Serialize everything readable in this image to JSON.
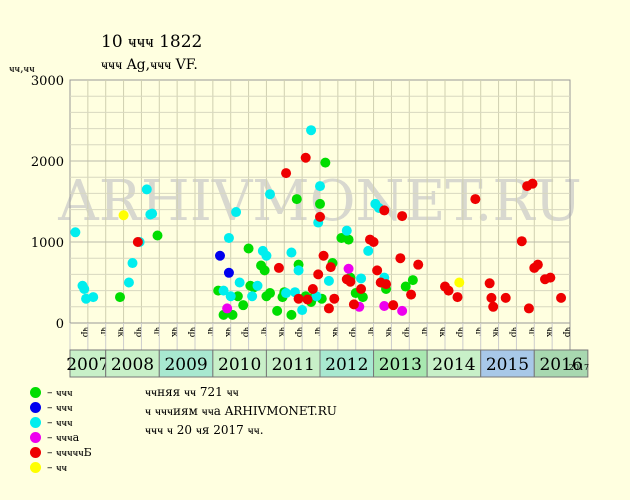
{
  "title": "10 ҹҹҹ 1822",
  "subtitle": "ҹҹҹ Ag,ҹҹҹ VF.",
  "ylabel": "ҹҹ,ҹҹ",
  "watermark": "ARHIVMONET.RU",
  "legend": [
    {
      "label": "– ҹҹҹ",
      "color": "#00dd00"
    },
    {
      "label": "– ҹҹҹ",
      "color": "#0000ee"
    },
    {
      "label": "– ҹҹҹ",
      "color": "#00eeee"
    },
    {
      "label": "– ҹҹҹа",
      "color": "#ee00ee"
    },
    {
      "label": "– ҹҹҹҹҹБ",
      "color": "#ee0000"
    },
    {
      "label": "– ҹҹ",
      "color": "#ffff00"
    }
  ],
  "notes": [
    "ҹҹняя ҹҹ 721 ҹҹ",
    "ҹ ҹҹҹиям ҹҹа ARHIVMONET.RU",
    "ҹҹҹ ҹ 20 ҹя 2017 ҹҹ."
  ],
  "chart_data": {
    "type": "scatter",
    "ylim": [
      0,
      3000
    ],
    "yticks": [
      0,
      1000,
      2000,
      3000
    ],
    "grid": true,
    "quarter_labels": [
      "ҹр",
      "ҹг",
      "ҹк",
      "ҹр",
      "ҹг",
      "ҹк",
      "ҹр",
      "ҹг",
      "ҹк",
      "ҹр",
      "ҹг",
      "ҹк",
      "ҹр",
      "ҹг",
      "ҹк",
      "ҹр",
      "ҹг",
      "ҹк",
      "ҹр",
      "ҹг",
      "ҹк",
      "ҹр",
      "ҹг",
      "ҹк",
      "ҹр",
      "ҹг",
      "ҹк",
      "ҹр",
      "ҹг",
      "ҹк",
      "ҹр",
      "ҹг",
      "ҹк",
      "ҹр",
      "ҹг",
      "ҹк",
      "ҹр",
      "ҹг",
      "ҹк",
      "ҹр",
      "ҹг",
      "ҹк",
      "ҹр",
      "ҹг",
      "ҹк",
      "ҹр",
      "ҹг",
      "ҹк",
      "ҹр",
      "ҹг",
      "ҹк",
      "ҹр",
      "ҹг",
      "ҹк",
      "ҹр",
      "ҹг",
      "ҹк",
      "ҹр",
      "ҹг",
      "ҹк",
      "ҹр",
      "ҹг",
      "ҹк",
      "ҹр",
      "ҹг",
      "ҹк",
      "ҹр",
      "ҹг",
      "ҹк",
      "ҹр",
      "ҹг",
      "ҹк",
      "ҹр",
      "ҹг",
      "ҹк",
      "ҹр",
      "ҹг",
      "ҹк",
      "ҹр",
      "ҹг",
      "ҹк",
      "ҹр",
      "ҹг",
      "ҹк",
      "ҹр",
      "ҹг",
      "ҹк",
      "ҹр",
      "ҹг",
      "ҹк",
      "ҹр",
      "ҹг",
      "ҹк",
      "ҹр",
      "ҹг",
      "ҹк",
      "ҹр",
      "ҹг",
      "ҹк",
      "ҹр",
      "ҹг",
      "ҹк",
      "ҹр",
      "ҹг",
      "ҹк",
      "ҹр",
      "ҹг",
      "ҹк",
      "ҹр",
      "ҹг",
      "ҹк",
      "ҹр",
      "ҹг",
      "ҹк",
      "ҹр",
      "ҹг",
      "ҹк",
      "ҹр",
      "ҹг",
      "ҹк",
      "ҹр",
      "ҹг",
      "ҹк",
      "ҹр",
      "ҹг",
      "ҹк",
      "ҹр",
      "ҹг",
      "ҹк",
      "ҹр",
      "ҹг",
      "ҹк",
      "ҹр",
      "ҹг",
      "ҹк",
      "ҹр",
      "ҹг",
      "ҹк",
      "ҹр",
      "ҹг",
      "ҹк",
      "ҹр",
      "ҹг",
      "ҹк",
      "ҹр",
      "ҹг",
      "ҹк",
      "ҹр",
      "ҹг",
      "ҹк",
      "ҹр",
      "ҹг",
      "ҹк",
      "ҹр",
      "ҹг",
      "ҹк",
      "ҹр",
      "ҹг",
      "ҹк",
      "ҹр",
      "ҹг",
      "ҹк",
      "ҹр",
      "ҹг",
      "ҹк",
      "ҹр",
      "ҹг",
      "ҹк",
      "ҹр",
      "ҹг",
      "ҹк",
      "ҹр",
      "ҹг",
      "ҹк",
      "ҹр",
      "ҹг",
      "ҹк",
      "ҹр",
      "ҹг",
      "ҹк",
      "ҹр",
      "ҹг",
      "ҹк",
      "ҹр",
      "ҹг",
      "ҹк",
      "ҹр",
      "ҹг",
      "ҹк",
      "ҹр",
      "ҹг",
      "ҹк",
      "ҹр",
      "ҹг",
      "ҹк",
      "ҹр",
      "ҹг",
      "ҹк",
      "ҹр",
      "ҹг",
      "ҹк",
      "ҹр",
      "ҹг",
      "ҹк"
    ],
    "years": [
      {
        "label": "2007",
        "color": "#c8f0c8"
      },
      {
        "label": "2008",
        "color": "#c8f0c8"
      },
      {
        "label": "2009",
        "color": "#a8e8d0"
      },
      {
        "label": "2010",
        "color": "#c8f0c8"
      },
      {
        "label": "2011",
        "color": "#c8f0c8"
      },
      {
        "label": "2012",
        "color": "#a8e8d0"
      },
      {
        "label": "2013",
        "color": "#a8e8b0"
      },
      {
        "label": "2014",
        "color": "#c8f0c8"
      },
      {
        "label": "2015",
        "color": "#a8c8e8"
      },
      {
        "label": "2016",
        "color": "#a8d8b0"
      },
      {
        "label": "2017",
        "color": "#c8f0c8"
      }
    ],
    "series": [
      {
        "color": "#00dd00",
        "points": [
          [
            2.8,
            320
          ],
          [
            4.9,
            1080
          ],
          [
            8.3,
            400
          ],
          [
            8.6,
            100
          ],
          [
            9.1,
            100
          ],
          [
            9.4,
            330
          ],
          [
            9.7,
            220
          ],
          [
            10.0,
            920
          ],
          [
            10.1,
            460
          ],
          [
            10.3,
            440
          ],
          [
            10.7,
            710
          ],
          [
            10.9,
            650
          ],
          [
            11.0,
            330
          ],
          [
            11.2,
            370
          ],
          [
            11.6,
            150
          ],
          [
            11.9,
            320
          ],
          [
            12.0,
            380
          ],
          [
            12.4,
            100
          ],
          [
            12.7,
            1530
          ],
          [
            12.8,
            720
          ],
          [
            13.2,
            330
          ],
          [
            13.5,
            260
          ],
          [
            13.6,
            310
          ],
          [
            14.0,
            1470
          ],
          [
            14.1,
            300
          ],
          [
            14.3,
            1980
          ],
          [
            14.7,
            740
          ],
          [
            15.2,
            1050
          ],
          [
            15.6,
            1030
          ],
          [
            15.7,
            560
          ],
          [
            16.0,
            370
          ],
          [
            16.4,
            320
          ],
          [
            17.7,
            420
          ],
          [
            18.8,
            450
          ],
          [
            19.2,
            530
          ]
        ]
      },
      {
        "color": "#0000ee",
        "points": [
          [
            8.4,
            830
          ],
          [
            8.9,
            620
          ]
        ]
      },
      {
        "color": "#00eeee",
        "points": [
          [
            0.3,
            1120
          ],
          [
            0.7,
            460
          ],
          [
            0.8,
            420
          ],
          [
            0.9,
            300
          ],
          [
            1.3,
            320
          ],
          [
            3.3,
            500
          ],
          [
            3.5,
            740
          ],
          [
            3.9,
            1000
          ],
          [
            4.3,
            1650
          ],
          [
            4.5,
            1340
          ],
          [
            4.6,
            1350
          ],
          [
            8.6,
            400
          ],
          [
            8.9,
            1050
          ],
          [
            9.0,
            330
          ],
          [
            9.3,
            1370
          ],
          [
            9.5,
            500
          ],
          [
            10.2,
            330
          ],
          [
            10.5,
            460
          ],
          [
            10.8,
            890
          ],
          [
            11.0,
            830
          ],
          [
            11.2,
            1590
          ],
          [
            12.1,
            370
          ],
          [
            12.4,
            870
          ],
          [
            12.6,
            380
          ],
          [
            12.8,
            650
          ],
          [
            13.0,
            160
          ],
          [
            13.5,
            2380
          ],
          [
            13.8,
            330
          ],
          [
            13.9,
            1240
          ],
          [
            14.0,
            1690
          ],
          [
            14.5,
            520
          ],
          [
            15.5,
            1140
          ],
          [
            16.3,
            550
          ],
          [
            16.7,
            890
          ],
          [
            17.1,
            1470
          ],
          [
            17.3,
            1420
          ],
          [
            17.6,
            560
          ]
        ]
      },
      {
        "color": "#ee00ee",
        "points": [
          [
            8.8,
            180
          ],
          [
            15.6,
            670
          ],
          [
            16.2,
            200
          ],
          [
            17.6,
            210
          ],
          [
            18.6,
            150
          ]
        ]
      },
      {
        "color": "#ee0000",
        "points": [
          [
            3.8,
            1000
          ],
          [
            11.7,
            680
          ],
          [
            12.1,
            1850
          ],
          [
            12.8,
            300
          ],
          [
            13.2,
            2040
          ],
          [
            13.3,
            290
          ],
          [
            13.6,
            420
          ],
          [
            13.9,
            600
          ],
          [
            14.0,
            1310
          ],
          [
            14.2,
            830
          ],
          [
            14.5,
            180
          ],
          [
            14.6,
            690
          ],
          [
            14.8,
            300
          ],
          [
            15.5,
            540
          ],
          [
            15.7,
            510
          ],
          [
            15.9,
            230
          ],
          [
            16.3,
            420
          ],
          [
            16.8,
            1030
          ],
          [
            17.0,
            1000
          ],
          [
            17.2,
            650
          ],
          [
            17.4,
            500
          ],
          [
            17.6,
            1390
          ],
          [
            17.7,
            480
          ],
          [
            18.1,
            220
          ],
          [
            18.5,
            800
          ],
          [
            18.6,
            1320
          ],
          [
            19.1,
            350
          ],
          [
            19.5,
            720
          ],
          [
            21.0,
            450
          ],
          [
            21.2,
            400
          ],
          [
            21.7,
            320
          ],
          [
            22.7,
            1530
          ],
          [
            23.5,
            490
          ],
          [
            23.6,
            310
          ],
          [
            23.7,
            200
          ],
          [
            24.4,
            310
          ],
          [
            25.3,
            1010
          ],
          [
            25.6,
            1690
          ],
          [
            25.7,
            180
          ],
          [
            25.9,
            1720
          ],
          [
            26.0,
            680
          ],
          [
            26.2,
            720
          ],
          [
            26.6,
            540
          ],
          [
            26.9,
            560
          ],
          [
            27.5,
            310
          ]
        ]
      },
      {
        "color": "#ffff00",
        "points": [
          [
            3.0,
            1330
          ],
          [
            21.8,
            500
          ]
        ]
      }
    ]
  }
}
